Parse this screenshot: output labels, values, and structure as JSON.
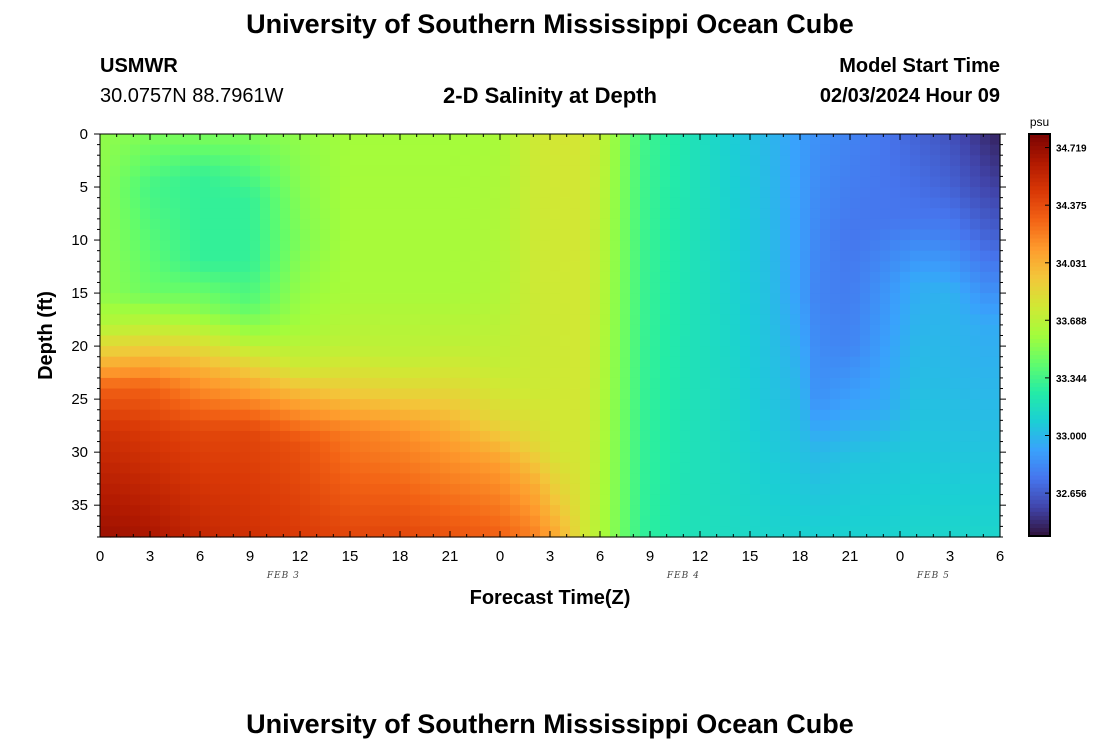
{
  "header": {
    "title": "University of Southern Mississippi Ocean Cube",
    "station": "USMWR",
    "coordinates": "30.0757N  88.7961W",
    "subtitle": "2-D Salinity at Depth",
    "model_start_label": "Model Start Time",
    "model_start_value": "02/03/2024 Hour 09"
  },
  "footer": {
    "title": "University of Southern Mississippi Ocean Cube"
  },
  "chart_data": {
    "type": "heatmap",
    "title": "2-D Salinity at Depth",
    "xlabel": "Forecast Time(Z)",
    "ylabel": "Depth (ft)",
    "x_range_hours": [
      0,
      54
    ],
    "y_range_ft": [
      0,
      38
    ],
    "x_ticks": [
      {
        "hour": 0,
        "label": "0"
      },
      {
        "hour": 3,
        "label": "3"
      },
      {
        "hour": 6,
        "label": "6"
      },
      {
        "hour": 9,
        "label": "9"
      },
      {
        "hour": 12,
        "label": "12"
      },
      {
        "hour": 15,
        "label": "15"
      },
      {
        "hour": 18,
        "label": "18"
      },
      {
        "hour": 21,
        "label": "21"
      },
      {
        "hour": 24,
        "label": "0"
      },
      {
        "hour": 27,
        "label": "3"
      },
      {
        "hour": 30,
        "label": "6"
      },
      {
        "hour": 33,
        "label": "9"
      },
      {
        "hour": 36,
        "label": "12"
      },
      {
        "hour": 39,
        "label": "15"
      },
      {
        "hour": 42,
        "label": "18"
      },
      {
        "hour": 45,
        "label": "21"
      },
      {
        "hour": 48,
        "label": "0"
      },
      {
        "hour": 51,
        "label": "3"
      },
      {
        "hour": 54,
        "label": "6"
      }
    ],
    "y_ticks": [
      0,
      5,
      10,
      15,
      20,
      25,
      30,
      35
    ],
    "date_labels": [
      {
        "hour": 11,
        "label": "FEB 3"
      },
      {
        "hour": 35,
        "label": "FEB 4"
      },
      {
        "hour": 50,
        "label": "FEB 5"
      }
    ],
    "colorbar": {
      "unit": "psu",
      "min": 32.4,
      "max": 34.8,
      "ticks": [
        34.719,
        34.375,
        34.031,
        33.688,
        33.344,
        33.0,
        32.656
      ],
      "tick_labels": [
        "34.719",
        "34.375",
        "34.031",
        "33.688",
        "33.344",
        "33.000",
        "32.656"
      ],
      "colormap": [
        "#30123b",
        "#4145ab",
        "#4675ed",
        "#39a2fc",
        "#1bcfd4",
        "#24eca6",
        "#61fc6c",
        "#a4fc3b",
        "#d1e834",
        "#f3c63a",
        "#fe9b2d",
        "#f36315",
        "#d93806",
        "#b11901",
        "#7a0402"
      ]
    },
    "depth_profiles": [
      {
        "hour": 0,
        "depths": [
          0,
          15,
          18,
          21,
          24,
          28,
          38
        ],
        "values": [
          33.55,
          33.55,
          33.65,
          33.95,
          34.3,
          34.5,
          34.7
        ]
      },
      {
        "hour": 3,
        "depths": [
          0,
          5,
          15,
          18,
          21,
          24,
          28,
          38
        ],
        "values": [
          33.5,
          33.35,
          33.45,
          33.7,
          34.0,
          34.3,
          34.45,
          34.65
        ]
      },
      {
        "hour": 6,
        "depths": [
          0,
          4,
          12,
          17,
          19,
          23,
          28,
          38
        ],
        "values": [
          33.5,
          33.3,
          33.3,
          33.55,
          33.75,
          34.1,
          34.4,
          34.55
        ]
      },
      {
        "hour": 9,
        "depths": [
          0,
          6,
          12,
          16,
          19,
          23,
          28,
          38
        ],
        "values": [
          33.5,
          33.3,
          33.3,
          33.4,
          33.6,
          34.0,
          34.4,
          34.5
        ]
      },
      {
        "hour": 12,
        "depths": [
          0,
          10,
          18,
          22,
          25,
          29,
          38
        ],
        "values": [
          33.55,
          33.5,
          33.6,
          33.75,
          34.05,
          34.35,
          34.45
        ]
      },
      {
        "hour": 15,
        "depths": [
          0,
          15,
          20,
          24,
          28,
          38
        ],
        "values": [
          33.6,
          33.62,
          33.7,
          33.9,
          34.2,
          34.4
        ]
      },
      {
        "hour": 18,
        "depths": [
          0,
          15,
          21,
          24,
          28,
          38
        ],
        "values": [
          33.6,
          33.62,
          33.7,
          33.85,
          34.15,
          34.4
        ]
      },
      {
        "hour": 21,
        "depths": [
          0,
          15,
          20,
          24,
          29,
          38
        ],
        "values": [
          33.6,
          33.62,
          33.7,
          33.85,
          34.1,
          34.35
        ]
      },
      {
        "hour": 24,
        "depths": [
          0,
          15,
          22,
          27,
          31,
          38
        ],
        "values": [
          33.62,
          33.65,
          33.72,
          33.85,
          34.1,
          34.3
        ]
      },
      {
        "hour": 26,
        "depths": [
          0,
          15,
          24,
          29,
          33,
          38
        ],
        "values": [
          33.75,
          33.75,
          33.75,
          33.85,
          34.05,
          34.2
        ]
      },
      {
        "hour": 27.5,
        "depths": [
          0,
          20,
          30,
          34,
          38
        ],
        "values": [
          33.78,
          33.75,
          33.78,
          33.9,
          34.05
        ]
      },
      {
        "hour": 29,
        "depths": [
          0,
          38
        ],
        "values": [
          33.78,
          33.78
        ]
      },
      {
        "hour": 30,
        "depths": [
          0,
          38
        ],
        "values": [
          33.72,
          33.65
        ]
      },
      {
        "hour": 31,
        "depths": [
          0,
          38
        ],
        "values": [
          33.55,
          33.5
        ]
      },
      {
        "hour": 32.5,
        "depths": [
          0,
          38
        ],
        "values": [
          33.35,
          33.3
        ]
      },
      {
        "hour": 35,
        "depths": [
          0,
          38
        ],
        "values": [
          33.22,
          33.2
        ]
      },
      {
        "hour": 38,
        "depths": [
          0,
          38
        ],
        "values": [
          33.08,
          33.15
        ]
      },
      {
        "hour": 40,
        "depths": [
          0,
          25,
          38
        ],
        "values": [
          33.0,
          33.05,
          33.12
        ]
      },
      {
        "hour": 42,
        "depths": [
          0,
          15,
          25,
          38
        ],
        "values": [
          32.9,
          32.9,
          33.0,
          33.1
        ]
      },
      {
        "hour": 43,
        "depths": [
          0,
          15,
          25,
          30,
          38
        ],
        "values": [
          32.85,
          32.8,
          32.85,
          33.0,
          33.1
        ]
      },
      {
        "hour": 45,
        "depths": [
          0,
          10,
          20,
          27,
          31,
          38
        ],
        "values": [
          32.8,
          32.75,
          32.8,
          32.95,
          33.05,
          33.1
        ]
      },
      {
        "hour": 47,
        "depths": [
          0,
          8,
          14,
          20,
          26,
          30,
          38
        ],
        "values": [
          32.75,
          32.75,
          32.85,
          32.9,
          32.95,
          33.05,
          33.1
        ]
      },
      {
        "hour": 49,
        "depths": [
          0,
          8,
          14,
          20,
          28,
          38
        ],
        "values": [
          32.68,
          32.75,
          32.95,
          33.0,
          33.05,
          33.12
        ]
      },
      {
        "hour": 51,
        "depths": [
          0,
          5,
          10,
          15,
          22,
          30,
          38
        ],
        "values": [
          32.62,
          32.68,
          32.8,
          32.98,
          33.0,
          33.05,
          33.12
        ]
      },
      {
        "hour": 53,
        "depths": [
          0,
          5,
          10,
          18,
          25,
          38
        ],
        "values": [
          32.5,
          32.58,
          32.7,
          32.95,
          33.0,
          33.12
        ]
      },
      {
        "hour": 54,
        "depths": [
          0,
          5,
          10,
          18,
          25,
          38
        ],
        "values": [
          32.45,
          32.55,
          32.68,
          32.95,
          33.0,
          33.12
        ]
      }
    ]
  }
}
